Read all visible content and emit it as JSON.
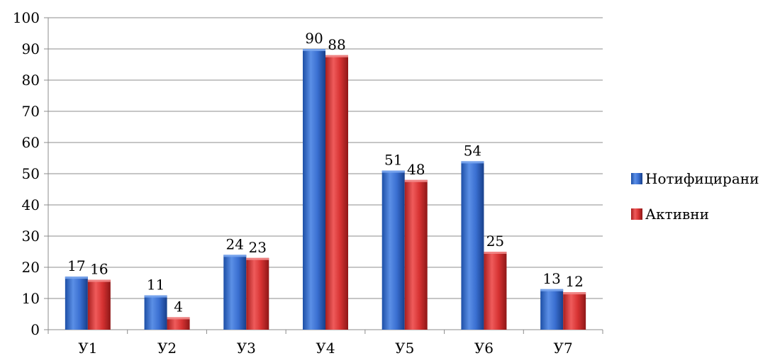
{
  "chart_data": {
    "type": "bar",
    "categories": [
      "У1",
      "У2",
      "У3",
      "У4",
      "У5",
      "У6",
      "У7"
    ],
    "series": [
      {
        "name": "Нотифицирани",
        "values": [
          17,
          11,
          24,
          90,
          51,
          54,
          13
        ],
        "color": "#2e66c7"
      },
      {
        "name": "Активни",
        "values": [
          16,
          4,
          23,
          88,
          48,
          25,
          12
        ],
        "color": "#d63232"
      }
    ],
    "ylim": [
      0,
      100
    ],
    "yticks": [
      0,
      10,
      20,
      30,
      40,
      50,
      60,
      70,
      80,
      90,
      100
    ],
    "grid": true,
    "legend": "right",
    "style": "3d-cylinder-like bars with gradient shading"
  }
}
